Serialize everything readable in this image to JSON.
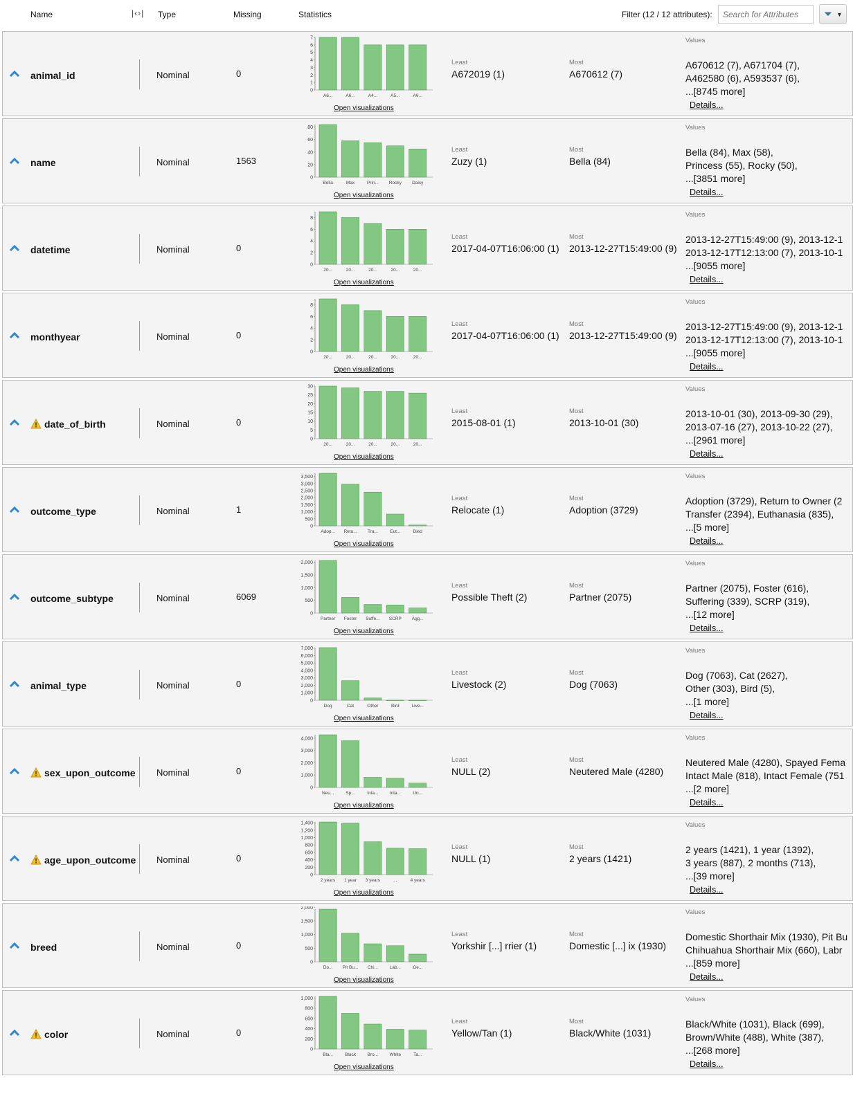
{
  "header": {
    "name": "Name",
    "type": "Type",
    "missing": "Missing",
    "statistics": "Statistics",
    "filter_label": "Filter (12 / 12 attributes):",
    "search_placeholder": "Search for Attributes"
  },
  "labels": {
    "least": "Least",
    "most": "Most",
    "values": "Values",
    "open_vis": "Open visualizations",
    "details": "Details..."
  },
  "colors": {
    "bar": "#82c882",
    "caret": "#2a8ad0",
    "warning": "#f0c419"
  },
  "attributes": [
    {
      "name": "animal_id",
      "warning": false,
      "type": "Nominal",
      "missing": "0",
      "least": "A672019 (1)",
      "most": "A670612 (7)",
      "values": [
        "A670612 (7), A671704 (7),",
        "A462580 (6), A593537 (6),",
        "...[8745 more]"
      ],
      "chart": {
        "ticks": [
          "7",
          "6",
          "5",
          "4",
          "3",
          "2",
          "1",
          "0"
        ],
        "tick_values": [
          7,
          6,
          5,
          4,
          3,
          2,
          1,
          0
        ],
        "ymax": 7,
        "bars": [
          7,
          7,
          6,
          6,
          6
        ],
        "cats": [
          "A6...",
          "A6...",
          "A4...",
          "A5...",
          "A6..."
        ]
      }
    },
    {
      "name": "name",
      "warning": false,
      "type": "Nominal",
      "missing": "1563",
      "least": "Zuzy (1)",
      "most": "Bella (84)",
      "values": [
        "Bella (84), Max (58),",
        "Princess (55), Rocky (50),",
        "...[3851 more]"
      ],
      "chart": {
        "ticks": [
          "80",
          "60",
          "40",
          "20",
          "0"
        ],
        "tick_values": [
          80,
          60,
          40,
          20,
          0
        ],
        "ymax": 84,
        "bars": [
          84,
          58,
          55,
          50,
          45
        ],
        "cats": [
          "Bella",
          "Max",
          "Prin...",
          "Rocky",
          "Daisy"
        ]
      }
    },
    {
      "name": "datetime",
      "warning": false,
      "type": "Nominal",
      "missing": "0",
      "least": "2017-04-07T16:06:00 (1)",
      "most": "2013-12-27T15:49:00 (9)",
      "values": [
        "2013-12-27T15:49:00 (9), 2013-12-1",
        "2013-12-17T12:13:00 (7), 2013-10-1",
        "...[9055 more]"
      ],
      "chart": {
        "ticks": [
          "8",
          "6",
          "4",
          "2",
          "0"
        ],
        "tick_values": [
          8,
          6,
          4,
          2,
          0
        ],
        "ymax": 9,
        "bars": [
          9,
          8,
          7,
          6,
          6
        ],
        "cats": [
          "20...",
          "20...",
          "20...",
          "20...",
          "20..."
        ]
      }
    },
    {
      "name": "monthyear",
      "warning": false,
      "type": "Nominal",
      "missing": "0",
      "least": "2017-04-07T16:06:00 (1)",
      "most": "2013-12-27T15:49:00 (9)",
      "values": [
        "2013-12-27T15:49:00 (9), 2013-12-1",
        "2013-12-17T12:13:00 (7), 2013-10-1",
        "...[9055 more]"
      ],
      "chart": {
        "ticks": [
          "8",
          "6",
          "4",
          "2",
          "0"
        ],
        "tick_values": [
          8,
          6,
          4,
          2,
          0
        ],
        "ymax": 9,
        "bars": [
          9,
          8,
          7,
          6,
          6
        ],
        "cats": [
          "20...",
          "20...",
          "20...",
          "20...",
          "20..."
        ]
      }
    },
    {
      "name": "date_of_birth",
      "warning": true,
      "type": "Nominal",
      "missing": "0",
      "least": "2015-08-01 (1)",
      "most": "2013-10-01 (30)",
      "values": [
        "2013-10-01 (30), 2013-09-30 (29),",
        "2013-07-16 (27), 2013-10-22 (27),",
        "...[2961 more]"
      ],
      "chart": {
        "ticks": [
          "30",
          "25",
          "20",
          "15",
          "10",
          "5",
          "0"
        ],
        "tick_values": [
          30,
          25,
          20,
          15,
          10,
          5,
          0
        ],
        "ymax": 30,
        "bars": [
          30,
          29,
          27,
          27,
          26
        ],
        "cats": [
          "20...",
          "20...",
          "20...",
          "20...",
          "20..."
        ]
      }
    },
    {
      "name": "outcome_type",
      "warning": false,
      "type": "Nominal",
      "missing": "1",
      "least": "Relocate (1)",
      "most": "Adoption (3729)",
      "values": [
        "Adoption (3729), Return to Owner (2",
        "Transfer (2394), Euthanasia (835),",
        "...[5 more]"
      ],
      "chart": {
        "ticks": [
          "3,500",
          "3,000",
          "2,500",
          "2,000",
          "1,500",
          "1,000",
          "500",
          "0"
        ],
        "tick_values": [
          3500,
          3000,
          2500,
          2000,
          1500,
          1000,
          500,
          0
        ],
        "ymax": 3729,
        "bars": [
          3729,
          2950,
          2394,
          835,
          60
        ],
        "cats": [
          "Adop...",
          "Retu...",
          "Tra...",
          "Eut...",
          "Died"
        ]
      }
    },
    {
      "name": "outcome_subtype",
      "warning": false,
      "type": "Nominal",
      "missing": "6069",
      "least": "Possible Theft (2)",
      "most": "Partner (2075)",
      "values": [
        "Partner (2075), Foster (616),",
        "Suffering (339), SCRP (319),",
        "...[12 more]"
      ],
      "chart": {
        "ticks": [
          "2,000",
          "1,500",
          "1,000",
          "500",
          "0"
        ],
        "tick_values": [
          2000,
          1500,
          1000,
          500,
          0
        ],
        "ymax": 2075,
        "bars": [
          2075,
          616,
          339,
          319,
          200
        ],
        "cats": [
          "Partner",
          "Foster",
          "Suffe...",
          "SCRP",
          "Agg..."
        ]
      }
    },
    {
      "name": "animal_type",
      "warning": false,
      "type": "Nominal",
      "missing": "0",
      "least": "Livestock (2)",
      "most": "Dog (7063)",
      "values": [
        "Dog (7063), Cat (2627),",
        "Other (303), Bird (5),",
        "...[1 more]"
      ],
      "chart": {
        "ticks": [
          "7,000",
          "6,000",
          "5,000",
          "4,000",
          "3,000",
          "2,000",
          "1,000",
          "0"
        ],
        "tick_values": [
          7000,
          6000,
          5000,
          4000,
          3000,
          2000,
          1000,
          0
        ],
        "ymax": 7063,
        "bars": [
          7063,
          2627,
          303,
          5,
          2
        ],
        "cats": [
          "Dog",
          "Cat",
          "Other",
          "Bird",
          "Live..."
        ]
      }
    },
    {
      "name": "sex_upon_outcome",
      "warning": true,
      "type": "Nominal",
      "missing": "0",
      "least": "NULL (2)",
      "most": "Neutered Male (4280)",
      "values": [
        "Neutered Male (4280), Spayed Fema",
        "Intact Male (818), Intact Female (751",
        "...[2 more]"
      ],
      "chart": {
        "ticks": [
          "4,000",
          "3,000",
          "2,000",
          "1,000",
          "0"
        ],
        "tick_values": [
          4000,
          3000,
          2000,
          1000,
          0
        ],
        "ymax": 4280,
        "bars": [
          4280,
          3800,
          818,
          751,
          350
        ],
        "cats": [
          "Neu...",
          "Sp...",
          "Inta...",
          "Inta...",
          "Un..."
        ]
      }
    },
    {
      "name": "age_upon_outcome",
      "warning": true,
      "type": "Nominal",
      "missing": "0",
      "least": "NULL (1)",
      "most": "2 years (1421)",
      "values": [
        "2 years (1421), 1 year (1392),",
        "3 years (887), 2 months (713),",
        "...[39 more]"
      ],
      "chart": {
        "ticks": [
          "1,400",
          "1,200",
          "1,000",
          "800",
          "600",
          "400",
          "200",
          "0"
        ],
        "tick_values": [
          1400,
          1200,
          1000,
          800,
          600,
          400,
          200,
          0
        ],
        "ymax": 1421,
        "bars": [
          1421,
          1392,
          887,
          713,
          700
        ],
        "cats": [
          "2 years",
          "1 year",
          "3 years",
          "...",
          "4 years"
        ]
      }
    },
    {
      "name": "breed",
      "warning": false,
      "type": "Nominal",
      "missing": "0",
      "least": "Yorkshir [...] rrier (1)",
      "most": "Domestic [...] ix (1930)",
      "values": [
        "Domestic Shorthair Mix (1930), Pit Bu",
        "Chihuahua Shorthair Mix (660), Labr",
        "...[859 more]"
      ],
      "chart": {
        "ticks": [
          "2,000",
          "1,500",
          "1,000",
          "500",
          "0"
        ],
        "tick_values": [
          2000,
          1500,
          1000,
          500,
          0
        ],
        "ymax": 1930,
        "bars": [
          1930,
          1050,
          660,
          590,
          280
        ],
        "cats": [
          "Do...",
          "Pit Bu...",
          "Chi...",
          "Lab...",
          "Ge..."
        ]
      }
    },
    {
      "name": "color",
      "warning": true,
      "type": "Nominal",
      "missing": "0",
      "least": "Yellow/Tan (1)",
      "most": "Black/White (1031)",
      "values": [
        "Black/White (1031), Black (699),",
        "Brown/White (488), White (387),",
        "...[268 more]"
      ],
      "chart": {
        "ticks": [
          "1,000",
          "800",
          "600",
          "400",
          "200",
          "0"
        ],
        "tick_values": [
          1000,
          800,
          600,
          400,
          200,
          0
        ],
        "ymax": 1031,
        "bars": [
          1031,
          699,
          488,
          387,
          370
        ],
        "cats": [
          "Bla...",
          "Black",
          "Bro...",
          "White",
          "Ta..."
        ]
      }
    }
  ]
}
